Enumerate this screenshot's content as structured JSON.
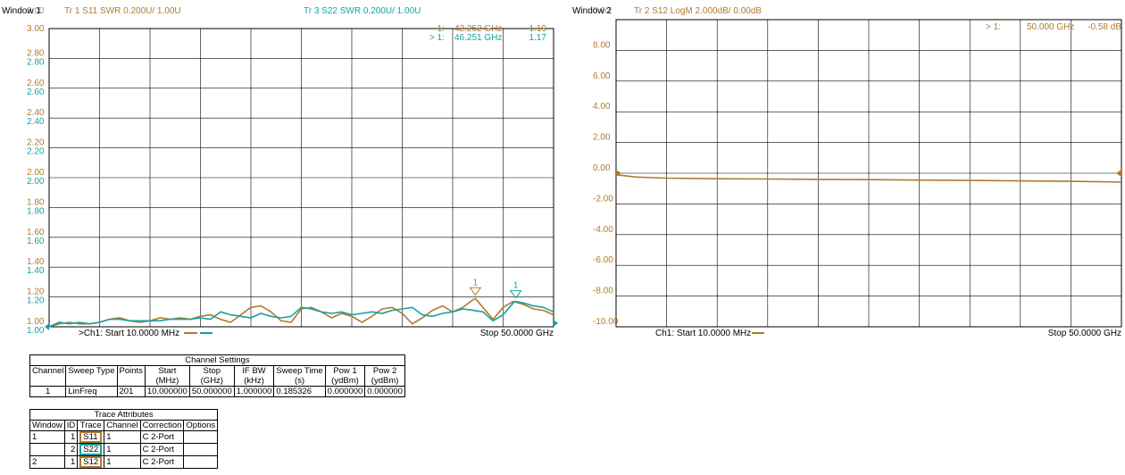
{
  "window1": {
    "label": "Window 1",
    "ghost_label": "3.00",
    "header_tr1": "Tr  1  S11 SWR 0.200U/  1.00U",
    "header_tr3": "Tr  3  S22 SWR 0.200U/  1.00U",
    "footer_start": ">Ch1:  Start  10.0000 MHz",
    "footer_stop": "Stop  50.0000 GHz",
    "marker_readouts": [
      {
        "id": "1:",
        "freq": "42.252 GHz",
        "value": "1.19",
        "color": "#b07a30"
      },
      {
        "id": "> 1:",
        "freq": "46.251 GHz",
        "value": "1.17",
        "color": "#1aa0a0"
      }
    ],
    "marker_flags": [
      "1",
      "1"
    ]
  },
  "window2": {
    "label": "Window 2",
    "ghost_label": "0.00",
    "header_tr2": "Tr  2  S12 LogM 2.000dB/  0.00dB",
    "footer_start": "Ch1:  Start  10.0000 MHz",
    "footer_stop": "Stop  50.0000 GHz",
    "marker_readout": {
      "id": "> 1:",
      "freq": "50.000 GHz",
      "value": "-0.58 dB"
    }
  },
  "chart_data": [
    {
      "type": "line",
      "x_unit": "GHz",
      "xlim": [
        0.01,
        50.0
      ],
      "ylim": [
        1.0,
        3.0
      ],
      "y_ticks_s11": [
        "3.00",
        "2.80",
        "2.60",
        "2.40",
        "2.20",
        "2.00",
        "1.80",
        "1.60",
        "1.40",
        "1.20",
        "1.00"
      ],
      "y_ticks_s22": [
        "",
        "2.80",
        "2.60",
        "2.40",
        "2.20",
        "2.00",
        "1.80",
        "1.60",
        "1.40",
        "1.20",
        "1.00"
      ],
      "grid": true,
      "series": [
        {
          "name": "S11",
          "color": "#b07a30",
          "x": [
            0.01,
            1,
            2,
            3,
            4,
            5,
            6,
            7,
            8,
            9,
            10,
            11,
            12,
            13,
            14,
            15,
            16,
            17,
            18,
            19,
            20,
            21,
            22,
            23,
            24,
            25,
            26,
            27,
            28,
            29,
            30,
            31,
            32,
            33,
            34,
            35,
            36,
            37,
            38,
            39,
            40,
            41,
            42,
            42.25,
            43,
            44,
            45,
            46,
            47,
            48,
            49,
            50
          ],
          "y": [
            1.0,
            1.02,
            1.03,
            1.02,
            1.02,
            1.03,
            1.05,
            1.06,
            1.04,
            1.03,
            1.04,
            1.06,
            1.05,
            1.06,
            1.05,
            1.07,
            1.08,
            1.05,
            1.03,
            1.08,
            1.13,
            1.14,
            1.1,
            1.04,
            1.03,
            1.12,
            1.13,
            1.1,
            1.06,
            1.09,
            1.07,
            1.03,
            1.07,
            1.12,
            1.13,
            1.09,
            1.02,
            1.06,
            1.11,
            1.14,
            1.1,
            1.13,
            1.18,
            1.19,
            1.13,
            1.05,
            1.13,
            1.17,
            1.15,
            1.12,
            1.11,
            1.08
          ]
        },
        {
          "name": "S22",
          "color": "#1aa0a0",
          "x": [
            0.01,
            1,
            2,
            3,
            4,
            5,
            6,
            7,
            8,
            9,
            10,
            11,
            12,
            13,
            14,
            15,
            16,
            17,
            18,
            19,
            20,
            21,
            22,
            23,
            24,
            25,
            26,
            27,
            28,
            29,
            30,
            31,
            32,
            33,
            34,
            35,
            36,
            37,
            38,
            39,
            40,
            41,
            42,
            43,
            44,
            45,
            46,
            46.25,
            47,
            48,
            49,
            50
          ],
          "y": [
            1.0,
            1.03,
            1.02,
            1.03,
            1.02,
            1.03,
            1.05,
            1.05,
            1.04,
            1.04,
            1.04,
            1.04,
            1.05,
            1.05,
            1.05,
            1.06,
            1.05,
            1.1,
            1.08,
            1.07,
            1.06,
            1.09,
            1.07,
            1.06,
            1.07,
            1.13,
            1.12,
            1.1,
            1.09,
            1.1,
            1.08,
            1.09,
            1.1,
            1.09,
            1.11,
            1.12,
            1.13,
            1.08,
            1.07,
            1.09,
            1.1,
            1.12,
            1.11,
            1.1,
            1.04,
            1.08,
            1.16,
            1.17,
            1.16,
            1.14,
            1.13,
            1.1
          ]
        }
      ]
    },
    {
      "type": "line",
      "x_unit": "GHz",
      "xlim": [
        0.01,
        50.0
      ],
      "ylim": [
        -10.0,
        10.0
      ],
      "y_ticks": [
        "8.00",
        "6.00",
        "4.00",
        "2.00",
        "0.00",
        "-2.00",
        "-4.00",
        "-6.00",
        "-8.00",
        "-10.00"
      ],
      "grid": true,
      "series": [
        {
          "name": "S12",
          "color": "#b07a30",
          "x": [
            0.01,
            2,
            5,
            10,
            15,
            20,
            25,
            30,
            35,
            40,
            45,
            48,
            50
          ],
          "y": [
            -0.1,
            -0.25,
            -0.32,
            -0.36,
            -0.38,
            -0.4,
            -0.42,
            -0.45,
            -0.47,
            -0.5,
            -0.53,
            -0.56,
            -0.58
          ]
        }
      ]
    }
  ],
  "channel_settings": {
    "title": "Channel Settings",
    "headers": [
      [
        "Channel",
        ""
      ],
      [
        "Sweep Type",
        ""
      ],
      [
        "Points",
        ""
      ],
      [
        "Start",
        "(MHz)"
      ],
      [
        "Stop",
        "(GHz)"
      ],
      [
        "IF BW",
        "(kHz)"
      ],
      [
        "Sweep Time",
        "(s)"
      ],
      [
        "Pow 1",
        "(ydBm)"
      ],
      [
        "Pow 2",
        "(ydBm)"
      ]
    ],
    "row": [
      "1",
      "LinFreq",
      "201",
      "10.000000",
      "50.000000",
      "1.000000",
      "0.185326",
      "0.000000",
      "0.000000"
    ]
  },
  "trace_attributes": {
    "title": "Trace Attributes",
    "headers": [
      "Window",
      "ID",
      "Trace",
      "Channel",
      "Correction",
      "Options"
    ],
    "rows": [
      [
        "1",
        "1",
        "S11",
        "1",
        "C 2-Port",
        ""
      ],
      [
        "",
        "2",
        "S22",
        "1",
        "C 2-Port",
        ""
      ],
      [
        "2",
        "1",
        "S12",
        "1",
        "C 2-Port",
        ""
      ]
    ]
  }
}
